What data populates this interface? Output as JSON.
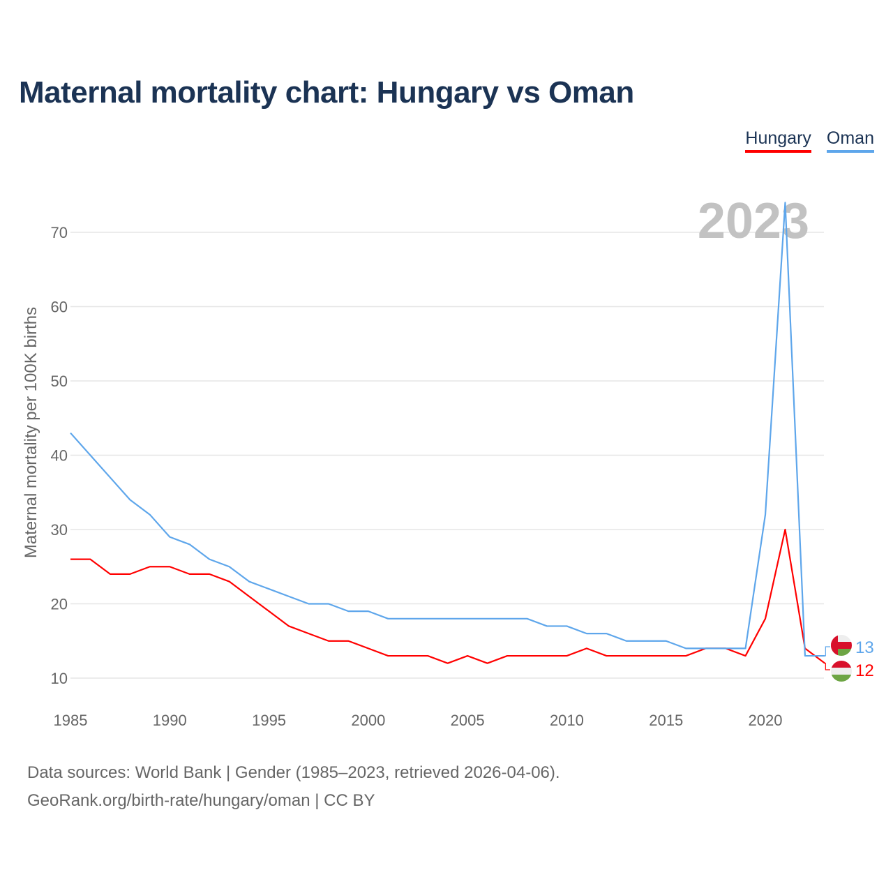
{
  "title": "Maternal mortality chart: Hungary vs Oman",
  "year_watermark": "2023",
  "footer": {
    "line1": "Data sources: World Bank | Gender (1985–2023, retrieved 2026-04-06).",
    "line2": "GeoRank.org/birth-rate/hungary/oman | CC BY"
  },
  "chart_data": {
    "type": "line",
    "title": "Maternal mortality chart: Hungary vs Oman",
    "xlabel": "",
    "ylabel": "Maternal mortality per 100K births",
    "xlim": [
      1985,
      2023
    ],
    "ylim": [
      10,
      70
    ],
    "xticks": [
      "1985",
      "1990",
      "1995",
      "2000",
      "2005",
      "2010",
      "2015",
      "2020"
    ],
    "yticks": [
      "10",
      "20",
      "30",
      "40",
      "50",
      "60",
      "70"
    ],
    "grid": true,
    "legend_position": "top-right",
    "x": [
      1985,
      1986,
      1987,
      1988,
      1989,
      1990,
      1991,
      1992,
      1993,
      1994,
      1995,
      1996,
      1997,
      1998,
      1999,
      2000,
      2001,
      2002,
      2003,
      2004,
      2005,
      2006,
      2007,
      2008,
      2009,
      2010,
      2011,
      2012,
      2013,
      2014,
      2015,
      2016,
      2017,
      2018,
      2019,
      2020,
      2021,
      2022,
      2023
    ],
    "series": [
      {
        "name": "Hungary",
        "color": "#ff0000",
        "end_label": "12",
        "values": [
          26,
          26,
          24,
          24,
          25,
          25,
          24,
          24,
          23,
          21,
          19,
          17,
          16,
          15,
          15,
          14,
          13,
          13,
          13,
          12,
          13,
          12,
          13,
          13,
          13,
          13,
          14,
          13,
          13,
          13,
          13,
          13,
          14,
          14,
          13,
          18,
          30,
          14,
          12
        ]
      },
      {
        "name": "Oman",
        "color": "#5ea6eb",
        "end_label": "13",
        "values": [
          43,
          40,
          37,
          34,
          32,
          29,
          28,
          26,
          25,
          23,
          22,
          21,
          20,
          20,
          19,
          19,
          18,
          18,
          18,
          18,
          18,
          18,
          18,
          18,
          17,
          17,
          16,
          16,
          15,
          15,
          15,
          14,
          14,
          14,
          14,
          32,
          74,
          13,
          13
        ]
      }
    ]
  }
}
